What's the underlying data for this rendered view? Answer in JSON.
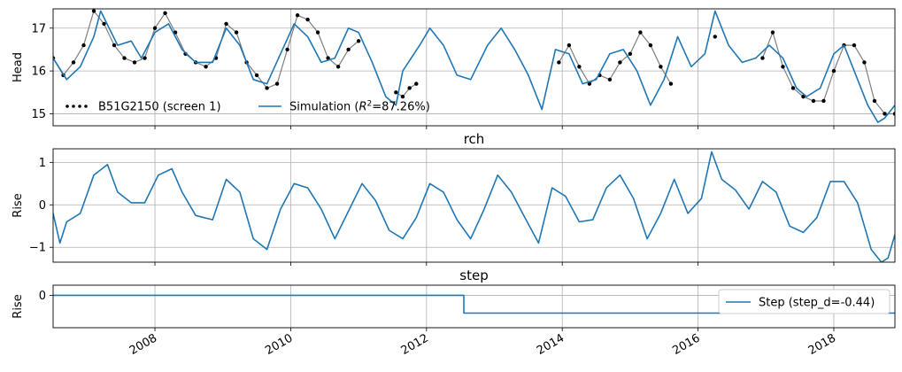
{
  "colors": {
    "sim": "#1f77b4",
    "obs": "#000000",
    "grid": "#b0b0b0"
  },
  "chart_data": [
    {
      "type": "line",
      "title": "",
      "ylabel": "Head",
      "xlim": [
        2006.5,
        2018.9
      ],
      "ylim": [
        14.72,
        17.45
      ],
      "yticks": [
        15,
        16,
        17
      ],
      "grid": true,
      "legend_position": "bottom-left",
      "series": [
        {
          "name": "B51G2150 (screen 1)",
          "style": "dotted-markers",
          "segments": [
            {
              "x": [
                2006.5,
                2006.65,
                2006.8,
                2006.95,
                2007.1,
                2007.25,
                2007.4,
                2007.55,
                2007.7,
                2007.85,
                2008.0,
                2008.15,
                2008.3,
                2008.45,
                2008.6,
                2008.75,
                2008.9,
                2009.05,
                2009.2,
                2009.35,
                2009.5,
                2009.65,
                2009.8,
                2009.95,
                2010.1,
                2010.25,
                2010.4,
                2010.55,
                2010.7,
                2010.85,
                2011.0
              ],
              "y": [
                16.3,
                15.9,
                16.2,
                16.6,
                17.4,
                17.1,
                16.6,
                16.3,
                16.2,
                16.3,
                17.0,
                17.35,
                16.9,
                16.4,
                16.2,
                16.1,
                16.3,
                17.1,
                16.9,
                16.2,
                15.9,
                15.6,
                15.7,
                16.5,
                17.3,
                17.2,
                16.9,
                16.3,
                16.1,
                16.5,
                16.7
              ]
            },
            {
              "x": [
                2011.55,
                2011.65,
                2011.75,
                2011.85
              ],
              "y": [
                15.5,
                15.4,
                15.6,
                15.7
              ]
            },
            {
              "x": [
                2013.95,
                2014.1,
                2014.25,
                2014.4,
                2014.55,
                2014.7,
                2014.85,
                2015.0,
                2015.15,
                2015.3,
                2015.45,
                2015.6
              ],
              "y": [
                16.2,
                16.6,
                16.1,
                15.7,
                15.9,
                15.8,
                16.2,
                16.4,
                16.9,
                16.6,
                16.1,
                15.7
              ]
            },
            {
              "x": [
                2016.25
              ],
              "y": [
                16.8
              ]
            },
            {
              "x": [
                2016.95,
                2017.1,
                2017.25,
                2017.4,
                2017.55,
                2017.7,
                2017.85,
                2018.0,
                2018.15,
                2018.3,
                2018.45,
                2018.6,
                2018.75,
                2018.9
              ],
              "y": [
                16.3,
                16.9,
                16.1,
                15.6,
                15.4,
                15.3,
                15.3,
                16.0,
                16.6,
                16.6,
                16.2,
                15.3,
                15.0,
                15.0
              ]
            }
          ]
        },
        {
          "name": "Simulation ($R^2$=87.26%)",
          "x": [
            2006.5,
            2006.7,
            2006.9,
            2007.1,
            2007.2,
            2007.45,
            2007.65,
            2007.8,
            2008.0,
            2008.2,
            2008.4,
            2008.6,
            2008.85,
            2009.05,
            2009.25,
            2009.45,
            2009.65,
            2009.85,
            2010.05,
            2010.25,
            2010.45,
            2010.65,
            2010.85,
            2011.0,
            2011.2,
            2011.4,
            2011.55,
            2011.65,
            2011.9,
            2012.05,
            2012.25,
            2012.45,
            2012.65,
            2012.9,
            2013.1,
            2013.3,
            2013.5,
            2013.7,
            2013.9,
            2014.1,
            2014.3,
            2014.5,
            2014.7,
            2014.9,
            2015.1,
            2015.3,
            2015.5,
            2015.7,
            2015.9,
            2016.1,
            2016.25,
            2016.45,
            2016.65,
            2016.85,
            2017.05,
            2017.25,
            2017.45,
            2017.6,
            2017.8,
            2018.0,
            2018.15,
            2018.3,
            2018.5,
            2018.65,
            2018.75,
            2018.9
          ],
          "y": [
            16.3,
            15.8,
            16.1,
            16.8,
            17.4,
            16.6,
            16.7,
            16.3,
            16.9,
            17.1,
            16.5,
            16.2,
            16.2,
            17.0,
            16.6,
            15.8,
            15.7,
            16.4,
            17.1,
            16.8,
            16.2,
            16.3,
            17.0,
            16.9,
            16.2,
            15.4,
            15.2,
            16.0,
            16.6,
            17.0,
            16.6,
            15.9,
            15.8,
            16.6,
            17.0,
            16.5,
            15.9,
            15.1,
            16.5,
            16.4,
            15.7,
            15.8,
            16.4,
            16.5,
            16.0,
            15.2,
            15.8,
            16.8,
            16.1,
            16.4,
            17.4,
            16.6,
            16.2,
            16.3,
            16.6,
            16.3,
            15.6,
            15.4,
            15.6,
            16.4,
            16.6,
            16.0,
            15.2,
            14.8,
            14.9,
            15.2
          ]
        }
      ]
    },
    {
      "type": "line",
      "title": "rch",
      "ylabel": "Rise",
      "xlim": [
        2006.5,
        2018.9
      ],
      "ylim": [
        -1.35,
        1.32
      ],
      "yticks": [
        -1,
        0,
        1
      ],
      "grid": true,
      "series": [
        {
          "name": "",
          "x": [
            2006.5,
            2006.6,
            2006.7,
            2006.9,
            2007.1,
            2007.3,
            2007.45,
            2007.65,
            2007.85,
            2008.05,
            2008.25,
            2008.4,
            2008.6,
            2008.85,
            2009.05,
            2009.25,
            2009.45,
            2009.65,
            2009.85,
            2010.05,
            2010.25,
            2010.45,
            2010.65,
            2010.85,
            2011.05,
            2011.25,
            2011.45,
            2011.65,
            2011.85,
            2012.05,
            2012.25,
            2012.45,
            2012.65,
            2012.85,
            2013.05,
            2013.25,
            2013.45,
            2013.65,
            2013.85,
            2014.05,
            2014.25,
            2014.45,
            2014.65,
            2014.85,
            2015.05,
            2015.25,
            2015.45,
            2015.65,
            2015.85,
            2016.05,
            2016.2,
            2016.35,
            2016.55,
            2016.75,
            2016.95,
            2017.15,
            2017.35,
            2017.55,
            2017.75,
            2017.95,
            2018.15,
            2018.35,
            2018.55,
            2018.7,
            2018.8,
            2018.9
          ],
          "y": [
            -0.2,
            -0.9,
            -0.4,
            -0.2,
            0.7,
            0.95,
            0.3,
            0.05,
            0.05,
            0.7,
            0.85,
            0.3,
            -0.25,
            -0.35,
            0.6,
            0.3,
            -0.8,
            -1.05,
            -0.1,
            0.5,
            0.4,
            -0.1,
            -0.8,
            -0.15,
            0.5,
            0.1,
            -0.6,
            -0.8,
            -0.3,
            0.5,
            0.3,
            -0.35,
            -0.8,
            -0.1,
            0.7,
            0.3,
            -0.3,
            -0.9,
            0.4,
            0.2,
            -0.4,
            -0.35,
            0.4,
            0.7,
            0.15,
            -0.8,
            -0.2,
            0.6,
            -0.2,
            0.15,
            1.25,
            0.6,
            0.35,
            -0.1,
            0.55,
            0.3,
            -0.5,
            -0.65,
            -0.3,
            0.55,
            0.55,
            0.05,
            -1.05,
            -1.35,
            -1.25,
            -0.7
          ]
        }
      ]
    },
    {
      "type": "line",
      "title": "step",
      "ylabel": "Rise",
      "xlim": [
        2006.5,
        2018.9
      ],
      "ylim": [
        -0.8,
        0.25
      ],
      "yticks": [
        0
      ],
      "grid": true,
      "legend_position": "right",
      "series": [
        {
          "name": "Step (step_d=-0.44)",
          "x": [
            2006.5,
            2012.55,
            2012.55,
            2018.9
          ],
          "y": [
            0,
            0,
            -0.44,
            -0.44
          ]
        }
      ]
    }
  ],
  "x_axis": {
    "tick_values": [
      2008,
      2010,
      2012,
      2014,
      2016,
      2018
    ],
    "tick_labels": [
      "2008",
      "2010",
      "2012",
      "2014",
      "2016",
      "2018"
    ]
  }
}
